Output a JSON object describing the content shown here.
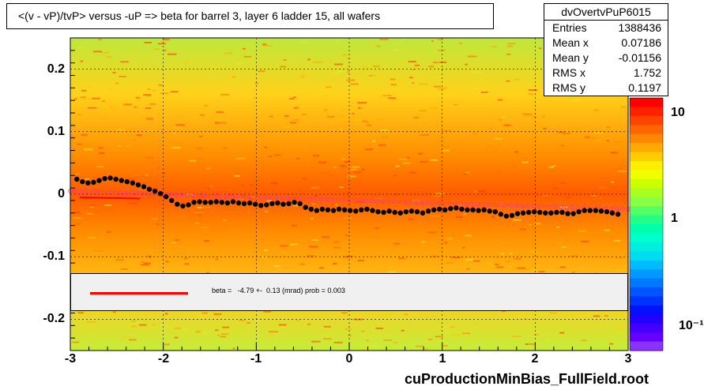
{
  "title": "<(v - vP)/tvP> versus  -uP => beta for barrel 3, layer 6 ladder 15, all wafers",
  "stats": {
    "name": "dvOvertvPuP6015",
    "rows": [
      {
        "label": "Entries",
        "value": "1388436"
      },
      {
        "label": "Mean x",
        "value": "0.07186"
      },
      {
        "label": "Mean y",
        "value": "-0.01156"
      },
      {
        "label": "RMS x",
        "value": "1.752"
      },
      {
        "label": "RMS y",
        "value": "0.1197"
      }
    ]
  },
  "fit": {
    "text": "beta =   -4.79 +-  0.13 (mrad) prob = 0.003",
    "color": "#ff0000"
  },
  "footer_title": "cuProductionMinBias_FullField.root",
  "colors": {
    "heatmap_high": "#ff3300",
    "heatmap_mid": "#ff9900",
    "heatmap_low": "#ccff33",
    "profile_points": "#000000",
    "fit_line": "#ff0000",
    "band_markers": "#ff3399"
  },
  "chart_data": {
    "type": "heatmap",
    "overlay": "profile",
    "xlim": [
      -3,
      3
    ],
    "ylim": [
      -0.25,
      0.25
    ],
    "x_ticks": [
      "-3",
      "-2",
      "-1",
      "0",
      "1",
      "2",
      "3"
    ],
    "y_ticks": [
      "0.2",
      "0.1",
      "0",
      "-0.1",
      "-0.2"
    ],
    "z_scale": "log",
    "z_ticks": [
      "10",
      "1",
      "10⁻¹"
    ],
    "grid": true,
    "profile": {
      "x": [
        -2.93,
        -2.87,
        -2.81,
        -2.75,
        -2.69,
        -2.63,
        -2.57,
        -2.51,
        -2.45,
        -2.39,
        -2.33,
        -2.27,
        -2.21,
        -2.15,
        -2.09,
        -2.03,
        -1.97,
        -1.91,
        -1.85,
        -1.79,
        -1.73,
        -1.67,
        -1.61,
        -1.55,
        -1.49,
        -1.43,
        -1.37,
        -1.31,
        -1.25,
        -1.19,
        -1.13,
        -1.07,
        -1.01,
        -0.95,
        -0.89,
        -0.83,
        -0.77,
        -0.71,
        -0.65,
        -0.59,
        -0.53,
        -0.47,
        -0.41,
        -0.35,
        -0.29,
        -0.23,
        -0.17,
        -0.11,
        -0.05,
        0.01,
        0.07,
        0.13,
        0.19,
        0.25,
        0.31,
        0.37,
        0.43,
        0.49,
        0.55,
        0.61,
        0.67,
        0.73,
        0.79,
        0.85,
        0.91,
        0.97,
        1.03,
        1.09,
        1.15,
        1.21,
        1.27,
        1.33,
        1.39,
        1.45,
        1.51,
        1.57,
        1.63,
        1.69,
        1.75,
        1.81,
        1.87,
        1.93,
        1.99,
        2.05,
        2.11,
        2.17,
        2.23,
        2.29,
        2.35,
        2.41,
        2.47,
        2.53,
        2.59,
        2.65,
        2.71,
        2.77,
        2.83,
        2.89
      ],
      "y": [
        0.024,
        0.02,
        0.018,
        0.019,
        0.022,
        0.025,
        0.026,
        0.024,
        0.022,
        0.02,
        0.018,
        0.015,
        0.012,
        0.008,
        0.005,
        0.001,
        -0.004,
        -0.01,
        -0.016,
        -0.019,
        -0.017,
        -0.013,
        -0.012,
        -0.013,
        -0.013,
        -0.012,
        -0.013,
        -0.014,
        -0.012,
        -0.014,
        -0.015,
        -0.014,
        -0.016,
        -0.018,
        -0.017,
        -0.015,
        -0.014,
        -0.016,
        -0.015,
        -0.013,
        -0.015,
        -0.021,
        -0.024,
        -0.026,
        -0.024,
        -0.025,
        -0.026,
        -0.024,
        -0.025,
        -0.026,
        -0.027,
        -0.025,
        -0.024,
        -0.026,
        -0.028,
        -0.029,
        -0.027,
        -0.029,
        -0.03,
        -0.028,
        -0.027,
        -0.028,
        -0.03,
        -0.027,
        -0.025,
        -0.024,
        -0.025,
        -0.023,
        -0.022,
        -0.024,
        -0.025,
        -0.025,
        -0.026,
        -0.025,
        -0.027,
        -0.028,
        -0.032,
        -0.035,
        -0.034,
        -0.031,
        -0.03,
        -0.029,
        -0.028,
        -0.029,
        -0.03,
        -0.03,
        -0.029,
        -0.029,
        -0.031,
        -0.031,
        -0.028,
        -0.026,
        -0.026,
        -0.026,
        -0.027,
        -0.028,
        -0.03,
        -0.032
      ]
    },
    "fit_line": {
      "x": [
        -2.9,
        -2.25
      ],
      "y": [
        -0.005,
        -0.007
      ]
    },
    "band": {
      "x": [
        -3.0,
        3.0
      ],
      "y": [
        0.005,
        -0.024
      ]
    }
  }
}
